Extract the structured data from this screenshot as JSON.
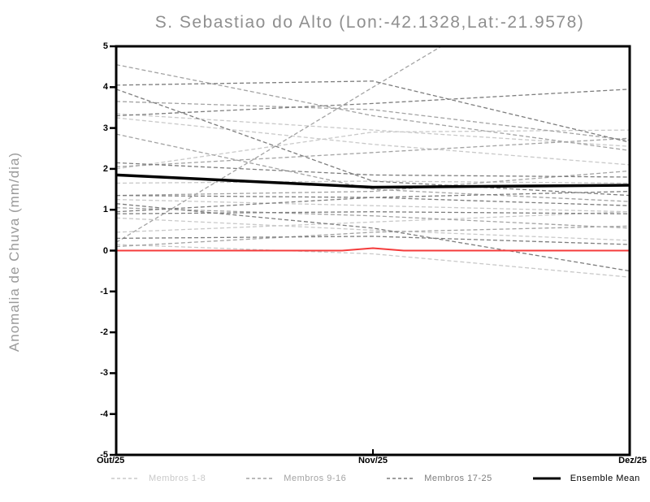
{
  "title": "S. Sebastiao do Alto (Lon:-42.1328,Lat:-21.9578)",
  "axes": {
    "y_label": "Anomalia de Chuva (mm/dia)",
    "y_ticks": [
      "5",
      "4",
      "3",
      "2",
      "1",
      "0",
      "-1",
      "-2",
      "-3",
      "-4",
      "-5"
    ],
    "y_tick_values": [
      5,
      4,
      3,
      2,
      1,
      0,
      -1,
      -2,
      -3,
      -4,
      -5
    ],
    "x_ticks": [
      "Out/25",
      "Nov/25",
      "Dez/25"
    ]
  },
  "legend": [
    {
      "label": "Membros 1-8",
      "color": "#c9c9c9",
      "style": "dashed"
    },
    {
      "label": "Membros 9-16",
      "color": "#a3a3a3",
      "style": "dashed"
    },
    {
      "label": "Membros 17-25",
      "color": "#7d7d7d",
      "style": "dashed"
    },
    {
      "label": "Ensemble Mean",
      "color": "#000000",
      "style": "solid"
    }
  ],
  "colors": {
    "frame": "#000000",
    "zero_line": "#f43b3b",
    "mean_line": "#000000",
    "title_gray": "#8f8f8f"
  },
  "chart_data": {
    "type": "line",
    "title": "S. Sebastiao do Alto (Lon:-42.1328,Lat:-21.9578)",
    "ylabel": "Anomalia de Chuva (mm/dia)",
    "x_categories": [
      "Out/25",
      "Nov/25",
      "Dez/25"
    ],
    "ylim": [
      -5,
      5
    ],
    "grid": false,
    "legend_position": "bottom",
    "groups": [
      {
        "name": "Membros 1-8",
        "color": "#c9c9c9",
        "line_style": "dashed",
        "members": [
          [
            3.35,
            2.95,
            2.55
          ],
          [
            3.25,
            2.6,
            2.1
          ],
          [
            1.65,
            1.7,
            1.65
          ],
          [
            1.25,
            1.1,
            0.95
          ],
          [
            0.45,
            0.7,
            0.95
          ],
          [
            0.15,
            -0.08,
            -0.65
          ],
          [
            2.0,
            2.9,
            2.95
          ],
          [
            0.8,
            0.5,
            0.25
          ]
        ]
      },
      {
        "name": "Membros 9-16",
        "color": "#a3a3a3",
        "line_style": "dashed",
        "members": [
          [
            4.55,
            3.3,
            2.45
          ],
          [
            3.65,
            3.45,
            2.7
          ],
          [
            2.85,
            1.5,
            1.2
          ],
          [
            2.05,
            2.4,
            2.75
          ],
          [
            1.05,
            0.85,
            0.55
          ],
          [
            0.2,
            4.0,
            7.75
          ],
          [
            1.35,
            1.45,
            1.95
          ],
          [
            0.1,
            0.45,
            0.6
          ]
        ]
      },
      {
        "name": "Membros 17-25",
        "color": "#7d7d7d",
        "line_style": "dashed",
        "members": [
          [
            4.05,
            4.15,
            2.65
          ],
          [
            3.95,
            1.7,
            1.35
          ],
          [
            3.3,
            3.6,
            3.95
          ],
          [
            2.15,
            1.85,
            1.8
          ],
          [
            1.35,
            1.3,
            1.45
          ],
          [
            0.9,
            0.95,
            0.9
          ],
          [
            1.15,
            0.55,
            -0.5
          ],
          [
            0.95,
            1.3,
            1.1
          ],
          [
            0.3,
            0.35,
            0.15
          ]
        ]
      }
    ],
    "ensemble_mean": {
      "name": "Ensemble Mean",
      "color": "#000000",
      "values": [
        1.85,
        1.55,
        1.6
      ]
    },
    "zero_line": {
      "color": "#f43b3b",
      "x": [
        0,
        0.88,
        1.0,
        1.12,
        2
      ],
      "y": [
        0,
        0,
        0.06,
        0,
        0
      ]
    }
  }
}
